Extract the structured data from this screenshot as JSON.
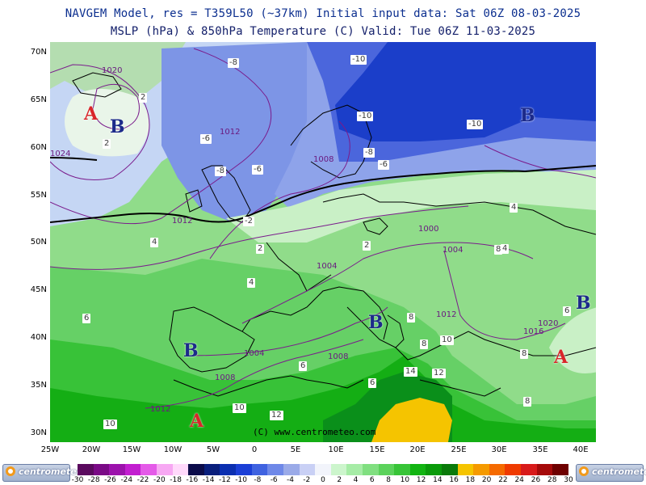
{
  "header": {
    "line1": "NAVGEM Model, res = T359L50 (~37km)   Initial input data: Sat 06Z 08-03-2025",
    "line2": "MSLP (hPa) & 850hPa Temperature (C)  Valid: Tue 06Z 11-03-2025"
  },
  "lat_labels": [
    "70N",
    "65N",
    "60N",
    "55N",
    "50N",
    "45N",
    "40N",
    "35N",
    "30N"
  ],
  "lon_labels": [
    "25W",
    "20W",
    "15W",
    "10W",
    "5W",
    "0",
    "5E",
    "10E",
    "15E",
    "20E",
    "25E",
    "30E",
    "35E",
    "40E"
  ],
  "pressure_centers": [
    {
      "letter": "A",
      "kind": "high",
      "color": "#d9262a"
    },
    {
      "letter": "B",
      "kind": "low",
      "color": "#1c2a8a"
    },
    {
      "letter": "B",
      "kind": "low",
      "color": "#1c2a8a"
    },
    {
      "letter": "B",
      "kind": "low",
      "color": "#1c2a8a"
    },
    {
      "letter": "B",
      "kind": "low",
      "color": "#1c2a8a"
    },
    {
      "letter": "B",
      "kind": "low",
      "color": "#1c2a8a"
    },
    {
      "letter": "A",
      "kind": "high",
      "color": "#d9262a"
    },
    {
      "letter": "A",
      "kind": "high",
      "color": "#d9262a"
    }
  ],
  "isobar_labels": [
    "1020",
    "1024",
    "1012",
    "1008",
    "1012",
    "1000",
    "1004",
    "1004",
    "1004",
    "1008",
    "1008",
    "1012",
    "1012",
    "1016",
    "1020"
  ],
  "temperature_labels": [
    "-10",
    "-10",
    "-10",
    "-8",
    "-8",
    "-8",
    "-6",
    "-6",
    "-6",
    "-2",
    "2",
    "2",
    "2",
    "2",
    "4",
    "4",
    "4",
    "4",
    "6",
    "6",
    "6",
    "6",
    "8",
    "8",
    "8",
    "8",
    "8",
    "10",
    "10",
    "10",
    "12",
    "12",
    "14"
  ],
  "copyright": "(C) www.centrometeo.com",
  "colorbar": {
    "labels": [
      "-30",
      "-28",
      "-26",
      "-24",
      "-22",
      "-20",
      "-18",
      "-16",
      "-14",
      "-12",
      "-10",
      "-8",
      "-6",
      "-4",
      "-2",
      "0",
      "2",
      "4",
      "6",
      "8",
      "10",
      "12",
      "14",
      "16",
      "18",
      "20",
      "22",
      "24",
      "26",
      "28",
      "30"
    ],
    "colors": [
      "#5a0a5e",
      "#7a0a86",
      "#9c12ac",
      "#c21ed0",
      "#e45ae8",
      "#f7a8f3",
      "#ffd9fb",
      "#0c0c4a",
      "#0a1f7c",
      "#0b2fb0",
      "#1b3fd6",
      "#3f62e0",
      "#6e88e8",
      "#9aaae8",
      "#c9d0f5",
      "#f2f4fb",
      "#ccf5cc",
      "#a6eca6",
      "#80df80",
      "#5bd25b",
      "#37c437",
      "#12b412",
      "#0a9a0a",
      "#0a7a0a",
      "#f5c400",
      "#f59a00",
      "#f56a00",
      "#ef3a00",
      "#d81a1a",
      "#a50a0a",
      "#6e0000"
    ]
  },
  "logo_text": "centrometeo"
}
